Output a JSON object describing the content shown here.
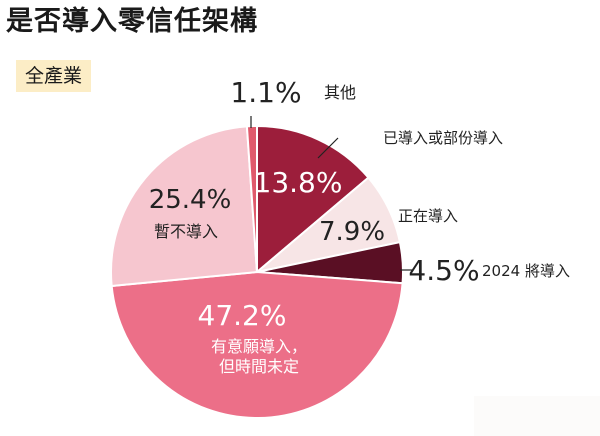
{
  "header": {
    "title": "是否導入零信任架構",
    "badge": "全產業"
  },
  "colors": {
    "slice_colors": [
      "#9c1e3b",
      "#f7e5e6",
      "#5a0f24",
      "#ec6f88",
      "#f6c6cf",
      "#e05a6c"
    ],
    "pct_label_colors": [
      "#ffffff",
      "#222222",
      "#222222",
      "#ffffff",
      "#222222",
      "#222222"
    ],
    "name_label_colors": [
      "#222222",
      "#222222",
      "#222222",
      "#ffffff",
      "#222222",
      "#222222"
    ]
  },
  "chart_data": {
    "type": "pie",
    "title": "是否導入零信任架構",
    "subtitle": "全產業",
    "start_angle_deg": 0,
    "direction": "clockwise",
    "slices": [
      {
        "pct_label": "13.8%",
        "value": 13.8,
        "name_lines": [
          "已導入或部份導入"
        ]
      },
      {
        "pct_label": "7.9%",
        "value": 7.9,
        "name_lines": [
          "正在導入"
        ]
      },
      {
        "pct_label": "4.5%",
        "value": 4.5,
        "name_lines": [
          "2024 將導入"
        ]
      },
      {
        "pct_label": "47.2%",
        "value": 47.2,
        "name_lines": [
          "有意願導入，",
          "但時間未定"
        ]
      },
      {
        "pct_label": "25.4%",
        "value": 25.4,
        "name_lines": [
          "暫不導入"
        ]
      },
      {
        "pct_label": "1.1%",
        "value": 1.1,
        "name_lines": [
          "其他"
        ]
      }
    ]
  }
}
